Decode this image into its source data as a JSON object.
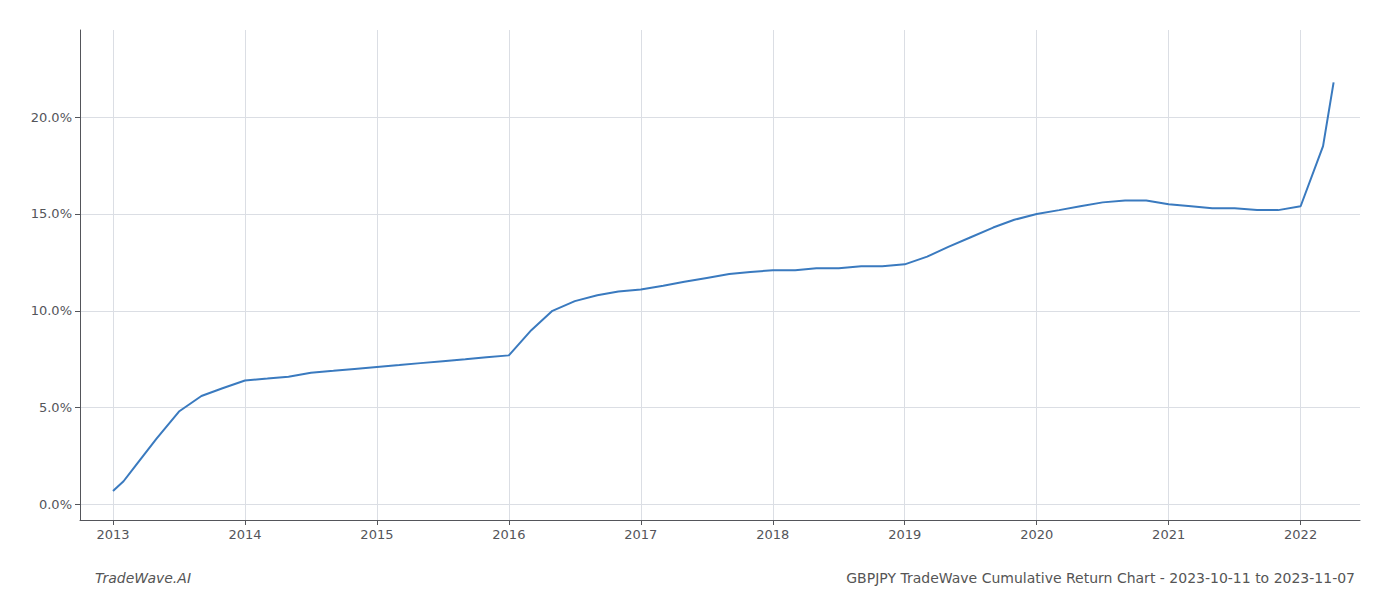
{
  "chart_data": {
    "type": "line",
    "title": "GBPJPY TradeWave Cumulative Return Chart - 2023-10-11 to 2023-11-07",
    "annotations": [
      "TradeWave.AI"
    ],
    "color": "#3a7abf",
    "grid": true,
    "x": [
      2013.0,
      2013.08,
      2013.17,
      2013.33,
      2013.5,
      2013.67,
      2013.83,
      2014.0,
      2014.17,
      2014.33,
      2014.5,
      2014.67,
      2014.83,
      2015.0,
      2015.17,
      2015.33,
      2015.5,
      2015.67,
      2015.83,
      2016.0,
      2016.17,
      2016.33,
      2016.5,
      2016.67,
      2016.83,
      2017.0,
      2017.17,
      2017.33,
      2017.5,
      2017.67,
      2017.83,
      2018.0,
      2018.17,
      2018.33,
      2018.5,
      2018.67,
      2018.83,
      2019.0,
      2019.17,
      2019.33,
      2019.5,
      2019.67,
      2019.83,
      2020.0,
      2020.17,
      2020.33,
      2020.5,
      2020.67,
      2020.83,
      2021.0,
      2021.17,
      2021.33,
      2021.5,
      2021.67,
      2021.83,
      2022.0,
      2022.17,
      2022.25
    ],
    "values": [
      0.007,
      0.012,
      0.02,
      0.034,
      0.048,
      0.056,
      0.06,
      0.064,
      0.065,
      0.066,
      0.068,
      0.069,
      0.07,
      0.071,
      0.072,
      0.073,
      0.074,
      0.075,
      0.076,
      0.077,
      0.09,
      0.1,
      0.105,
      0.108,
      0.11,
      0.111,
      0.113,
      0.115,
      0.117,
      0.119,
      0.12,
      0.121,
      0.121,
      0.122,
      0.122,
      0.123,
      0.123,
      0.124,
      0.128,
      0.133,
      0.138,
      0.143,
      0.147,
      0.15,
      0.152,
      0.154,
      0.156,
      0.157,
      0.157,
      0.155,
      0.154,
      0.153,
      0.153,
      0.152,
      0.152,
      0.154,
      0.185,
      0.218
    ],
    "xlim": [
      2012.75,
      2022.45
    ],
    "ylim": [
      -0.008,
      0.245
    ],
    "xticks": [
      2013,
      2014,
      2015,
      2016,
      2017,
      2018,
      2019,
      2020,
      2021,
      2022
    ],
    "yticks": [
      {
        "value": 0.0,
        "label": "0.0%"
      },
      {
        "value": 0.05,
        "label": "5.0%"
      },
      {
        "value": 0.1,
        "label": "10.0%"
      },
      {
        "value": 0.15,
        "label": "15.0%"
      },
      {
        "value": 0.2,
        "label": "20.0%"
      }
    ]
  }
}
